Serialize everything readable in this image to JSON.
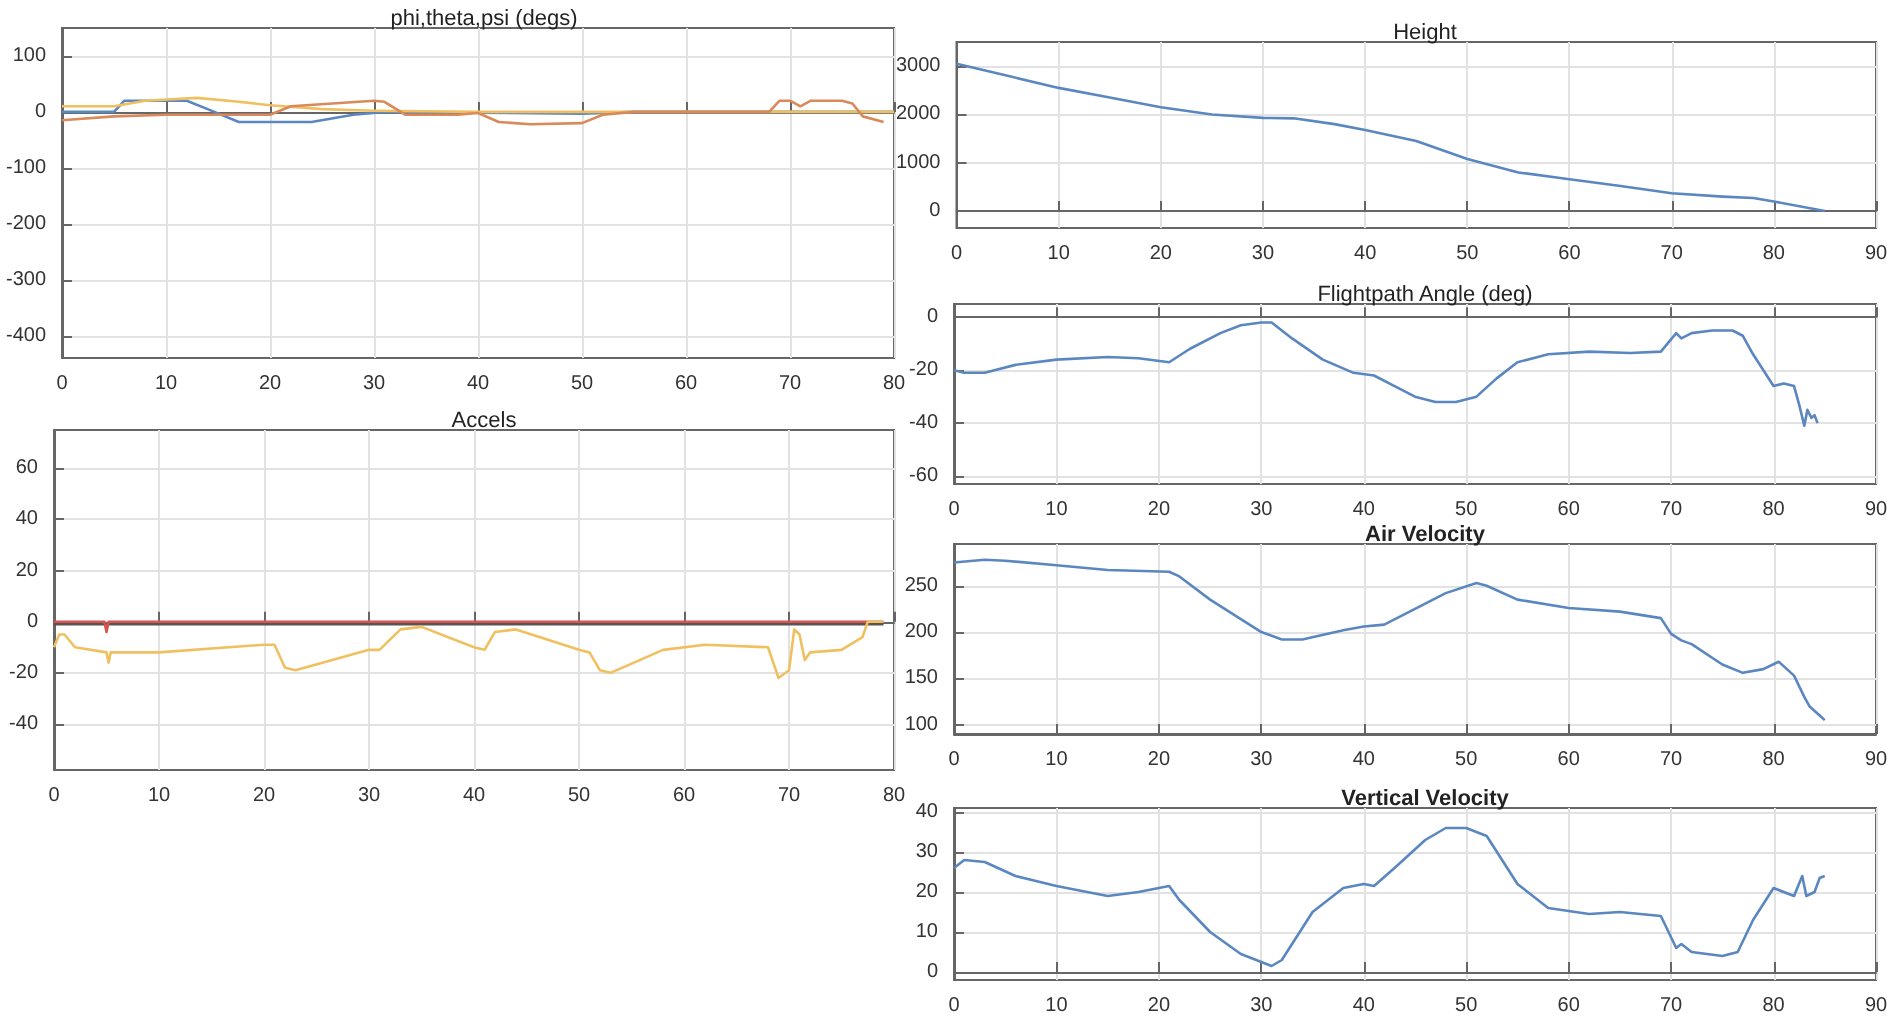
{
  "chart_data": [
    {
      "type": "line",
      "title": "phi,theta,psi (degs)",
      "xlim": [
        0,
        80
      ],
      "xticks": [
        0,
        10,
        20,
        30,
        40,
        50,
        60,
        70,
        80
      ],
      "ylim": [
        -440,
        150
      ],
      "yticks": [
        -400,
        -300,
        -200,
        -100,
        0,
        100
      ],
      "grid": true,
      "marker": "none",
      "series": [
        {
          "color": "#5b87c0",
          "x": [
            0,
            5,
            6,
            12,
            14,
            17,
            24,
            28,
            31,
            50,
            55,
            80
          ],
          "values": [
            0,
            0,
            20,
            20,
            5,
            -18,
            -18,
            -5,
            0,
            -3,
            0,
            0
          ]
        },
        {
          "color": "#f0c060",
          "x": [
            0,
            5,
            8,
            13,
            17,
            20,
            25,
            30,
            40,
            80
          ],
          "values": [
            10,
            10,
            20,
            25,
            18,
            12,
            5,
            2,
            0,
            0
          ]
        },
        {
          "color": "#d9895a",
          "x": [
            0,
            5,
            10,
            20,
            22,
            26,
            30,
            31,
            33,
            38,
            40,
            42,
            45,
            50,
            52,
            55,
            68,
            69,
            70,
            71,
            72,
            75,
            76,
            77,
            79
          ],
          "values": [
            -15,
            -8,
            -5,
            -5,
            10,
            15,
            20,
            18,
            -5,
            -5,
            -2,
            -18,
            -22,
            -20,
            -5,
            0,
            0,
            20,
            20,
            10,
            20,
            20,
            15,
            -8,
            -18
          ]
        }
      ]
    },
    {
      "type": "line",
      "title": "Accels",
      "xlim": [
        0,
        80
      ],
      "xticks": [
        0,
        10,
        20,
        30,
        40,
        50,
        60,
        70,
        80
      ],
      "ylim": [
        -58,
        75
      ],
      "yticks": [
        -40,
        -20,
        0,
        20,
        40,
        60
      ],
      "grid": true,
      "marker": "none",
      "series": [
        {
          "color": "#555555",
          "x": [
            0,
            20,
            40,
            60,
            79
          ],
          "values": [
            -1,
            -1,
            -1,
            -1,
            -1
          ]
        },
        {
          "color": "#d9534f",
          "x": [
            0,
            4.8,
            5,
            5.2,
            10,
            20,
            40,
            60,
            79
          ],
          "values": [
            0,
            0,
            -4,
            0,
            0,
            0,
            0,
            0,
            0
          ]
        },
        {
          "color": "#f0c060",
          "x": [
            0,
            0.5,
            1,
            2,
            5,
            5.2,
            5.4,
            10,
            20,
            21,
            22,
            23,
            30,
            31,
            33,
            35,
            40,
            41,
            42,
            44,
            50,
            51,
            52,
            53,
            58,
            62,
            68,
            69,
            70,
            70.5,
            71,
            71.5,
            72,
            75,
            77,
            77.5,
            79
          ],
          "values": [
            -10,
            -5,
            -5,
            -10,
            -12,
            -16,
            -12,
            -12,
            -9,
            -9,
            -18,
            -19,
            -11,
            -11,
            -3,
            -2,
            -10,
            -11,
            -4,
            -3,
            -11,
            -12,
            -19,
            -20,
            -11,
            -9,
            -10,
            -22,
            -19,
            -3,
            -5,
            -15,
            -12,
            -11,
            -6,
            0,
            0
          ]
        }
      ]
    },
    {
      "type": "line",
      "title": "Height",
      "xlim": [
        0,
        90
      ],
      "xticks": [
        0,
        10,
        20,
        30,
        40,
        50,
        60,
        70,
        80,
        90
      ],
      "ylim": [
        -350,
        3500
      ],
      "yticks": [
        0,
        1000,
        2000,
        3000
      ],
      "grid": true,
      "marker": "none",
      "series": [
        {
          "color": "#5b87c0",
          "x": [
            0,
            5,
            10,
            15,
            20,
            25,
            30,
            33,
            37,
            40,
            45,
            50,
            55,
            60,
            65,
            70,
            75,
            78,
            80,
            85
          ],
          "values": [
            3050,
            2800,
            2550,
            2350,
            2150,
            2000,
            1930,
            1920,
            1800,
            1680,
            1450,
            1080,
            800,
            660,
            520,
            370,
            300,
            270,
            200,
            0
          ]
        }
      ]
    },
    {
      "type": "line",
      "title": "Flightpath Angle (deg)",
      "xlim": [
        0,
        90
      ],
      "xticks": [
        0,
        10,
        20,
        30,
        40,
        50,
        60,
        70,
        80,
        90
      ],
      "ylim": [
        -63,
        5
      ],
      "yticks": [
        -60,
        -40,
        -20,
        0
      ],
      "grid": true,
      "marker": "none",
      "series": [
        {
          "color": "#5b87c0",
          "x": [
            0,
            1,
            3,
            6,
            10,
            15,
            18,
            21,
            23,
            26,
            28,
            30,
            31,
            33,
            36,
            39,
            41,
            43,
            45,
            47,
            49,
            51,
            53,
            55,
            58,
            62,
            66,
            69,
            70.5,
            71,
            72,
            74,
            76,
            77,
            78,
            80,
            81,
            82,
            82.5,
            83,
            83.3,
            83.7,
            84,
            84.3
          ],
          "values": [
            -20,
            -21,
            -21,
            -18,
            -16,
            -15,
            -15.5,
            -17,
            -12,
            -6,
            -3,
            -2,
            -2,
            -8,
            -16,
            -21,
            -22,
            -26,
            -30,
            -32,
            -32,
            -30,
            -23,
            -17,
            -14,
            -13,
            -13.5,
            -13,
            -6,
            -8,
            -6,
            -5,
            -5,
            -7,
            -14,
            -26,
            -25,
            -26,
            -33,
            -41,
            -35,
            -38,
            -37,
            -40
          ]
        }
      ]
    },
    {
      "type": "line",
      "title": "Air Velocity",
      "xlim": [
        0,
        90
      ],
      "xticks": [
        0,
        10,
        20,
        30,
        40,
        50,
        60,
        70,
        80,
        90
      ],
      "ylim": [
        90,
        295
      ],
      "yticks": [
        100,
        150,
        200,
        250
      ],
      "grid": true,
      "marker": "none",
      "series": [
        {
          "color": "#5b87c0",
          "x": [
            0,
            3,
            5,
            10,
            15,
            21,
            22,
            25,
            30,
            32,
            34,
            38,
            40,
            42,
            45,
            48,
            51,
            52,
            55,
            60,
            65,
            69,
            70,
            71,
            72,
            75,
            77,
            79,
            80.5,
            82,
            83,
            83.5,
            84.5,
            85
          ],
          "values": [
            275,
            278,
            277,
            272,
            267,
            265,
            260,
            235,
            200,
            192,
            192,
            202,
            206,
            208,
            225,
            242,
            253,
            250,
            235,
            226,
            222,
            215,
            198,
            191,
            187,
            165,
            156,
            160,
            168,
            153,
            130,
            120,
            110,
            105
          ]
        }
      ]
    },
    {
      "type": "line",
      "title": "Vertical Velocity",
      "xlim": [
        0,
        90
      ],
      "xticks": [
        0,
        10,
        20,
        30,
        40,
        50,
        60,
        70,
        80,
        90
      ],
      "ylim": [
        -2,
        41
      ],
      "yticks": [
        0,
        10,
        20,
        30,
        40
      ],
      "grid": true,
      "marker": "none",
      "series": [
        {
          "color": "#5b87c0",
          "x": [
            0,
            1,
            3,
            6,
            10,
            15,
            18,
            21,
            22,
            25,
            28,
            31,
            32,
            35,
            38,
            40,
            41,
            43,
            46,
            48,
            50,
            52,
            55,
            58,
            62,
            65,
            69,
            70.5,
            71,
            72,
            75,
            76.5,
            78,
            80,
            82,
            82.8,
            83.2,
            84,
            84.5,
            85
          ],
          "values": [
            26,
            28,
            27.5,
            24,
            21.5,
            19,
            20,
            21.5,
            18,
            10,
            4.5,
            1.5,
            3,
            15,
            21,
            22,
            21.5,
            26,
            33,
            36,
            36,
            34,
            22,
            16,
            14.5,
            15,
            14,
            6,
            7,
            5,
            4,
            5,
            13,
            21,
            19,
            24,
            19,
            20,
            23.5,
            24
          ]
        }
      ]
    }
  ]
}
